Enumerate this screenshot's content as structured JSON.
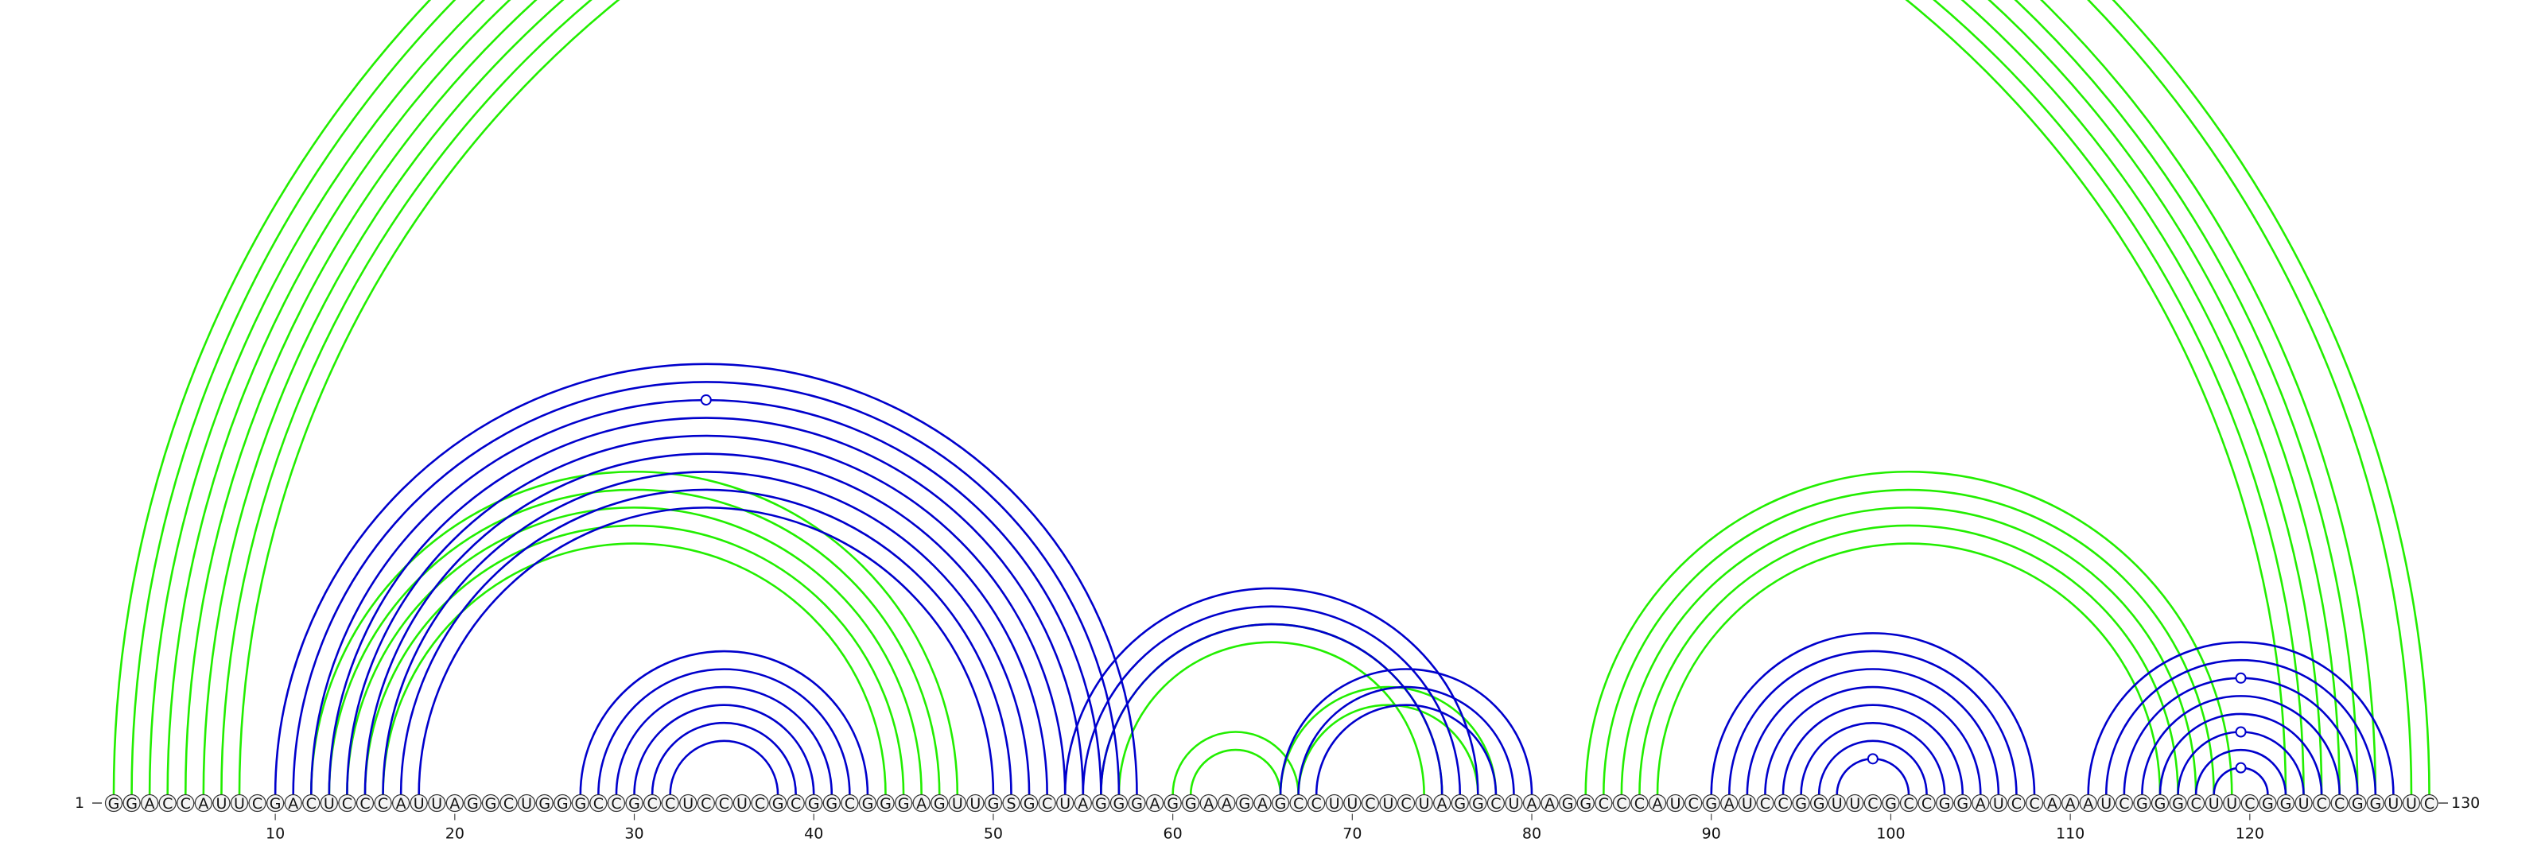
{
  "diagram": {
    "title": "",
    "sequence": "GGACCAUUCGACUCCCAUUAGGCUGGGCCGCCUCCUCGCGGCGGGAGUUGSGCUAGGGAGGAAGAGCCUUCUCUAGGCUAAGGCCCAUCGAUCCGGUUCGCCGGAUCCAAAUCGGGCUUCGGUCCGGUUC",
    "start_label": "1",
    "end_label": "130",
    "ticks": [
      10,
      20,
      30,
      40,
      50,
      60,
      70,
      80,
      90,
      100,
      110,
      120
    ],
    "colors": {
      "green": "#22ee00",
      "blue": "#0000cc"
    },
    "green_arcs": [
      {
        "i": 1,
        "j": 130
      },
      {
        "i": 2,
        "j": 129
      },
      {
        "i": 3,
        "j": 127
      },
      {
        "i": 4,
        "j": 126
      },
      {
        "i": 5,
        "j": 125
      },
      {
        "i": 6,
        "j": 124
      },
      {
        "i": 7,
        "j": 123
      },
      {
        "i": 8,
        "j": 122
      },
      {
        "i": 12,
        "j": 48
      },
      {
        "i": 13,
        "j": 47
      },
      {
        "i": 14,
        "j": 46
      },
      {
        "i": 15,
        "j": 45
      },
      {
        "i": 16,
        "j": 44
      },
      {
        "i": 56,
        "j": 75
      },
      {
        "i": 57,
        "j": 74
      },
      {
        "i": 60,
        "j": 67
      },
      {
        "i": 61,
        "j": 66
      },
      {
        "i": 66,
        "j": 78
      },
      {
        "i": 67,
        "j": 77
      },
      {
        "i": 83,
        "j": 119
      },
      {
        "i": 84,
        "j": 118
      },
      {
        "i": 85,
        "j": 117
      },
      {
        "i": 86,
        "j": 116
      },
      {
        "i": 87,
        "j": 115
      }
    ],
    "blue_arcs": [
      {
        "i": 10,
        "j": 58
      },
      {
        "i": 11,
        "j": 57
      },
      {
        "i": 12,
        "j": 56
      },
      {
        "i": 13,
        "j": 55
      },
      {
        "i": 14,
        "j": 54
      },
      {
        "i": 15,
        "j": 53
      },
      {
        "i": 16,
        "j": 52
      },
      {
        "i": 17,
        "j": 51
      },
      {
        "i": 18,
        "j": 50
      },
      {
        "i": 27,
        "j": 43
      },
      {
        "i": 28,
        "j": 42
      },
      {
        "i": 29,
        "j": 41
      },
      {
        "i": 30,
        "j": 40
      },
      {
        "i": 31,
        "j": 39
      },
      {
        "i": 32,
        "j": 38
      },
      {
        "i": 54,
        "j": 77
      },
      {
        "i": 55,
        "j": 76
      },
      {
        "i": 56,
        "j": 75
      },
      {
        "i": 66,
        "j": 80
      },
      {
        "i": 67,
        "j": 79
      },
      {
        "i": 68,
        "j": 78
      },
      {
        "i": 90,
        "j": 108
      },
      {
        "i": 91,
        "j": 107
      },
      {
        "i": 92,
        "j": 106
      },
      {
        "i": 93,
        "j": 105
      },
      {
        "i": 94,
        "j": 104
      },
      {
        "i": 95,
        "j": 103
      },
      {
        "i": 96,
        "j": 102
      },
      {
        "i": 97,
        "j": 101
      },
      {
        "i": 111,
        "j": 128
      },
      {
        "i": 112,
        "j": 127
      },
      {
        "i": 113,
        "j": 126
      },
      {
        "i": 114,
        "j": 125
      },
      {
        "i": 115,
        "j": 124
      },
      {
        "i": 116,
        "j": 123
      },
      {
        "i": 117,
        "j": 122
      },
      {
        "i": 118,
        "j": 121
      }
    ]
  }
}
